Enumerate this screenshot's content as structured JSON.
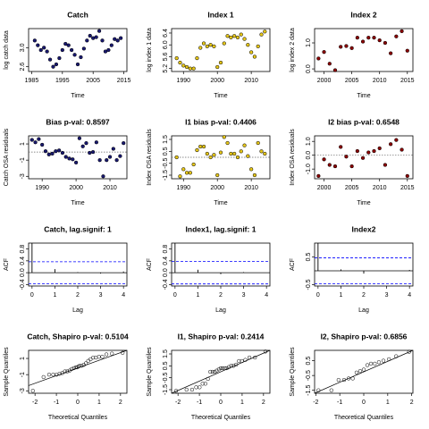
{
  "chart_data": [
    {
      "type": "scatter",
      "title": "Catch",
      "title_color": "#000000",
      "xlabel": "Time",
      "ylabel": "log catch data",
      "color": "#191970",
      "x": [
        1986,
        1987,
        1988,
        1989,
        1990,
        1991,
        1992,
        1993,
        1994,
        1995,
        1996,
        1997,
        1998,
        1999,
        2000,
        2001,
        2002,
        2003,
        2004,
        2005,
        2006,
        2007,
        2008,
        2009,
        2010,
        2011,
        2012,
        2013,
        2014
      ],
      "values": [
        3.15,
        3.05,
        2.95,
        3.0,
        2.92,
        2.75,
        2.6,
        2.65,
        2.78,
        2.95,
        3.08,
        3.05,
        2.95,
        2.85,
        2.65,
        2.8,
        2.98,
        3.15,
        3.25,
        3.2,
        3.22,
        3.35,
        3.15,
        2.92,
        2.95,
        3.05,
        3.18,
        3.15,
        3.2
      ],
      "xlim": [
        1984,
        2016
      ],
      "ylim": [
        2.5,
        3.4
      ],
      "xticks": [
        1985,
        1995,
        2005,
        2015
      ],
      "yticks": [
        2.6,
        {
          "value": 3,
          "label": "3.0"
        }
      ]
    },
    {
      "type": "scatter",
      "title": "Index 1",
      "title_color": "#000000",
      "xlabel": "Time",
      "ylabel": "log index 1 data",
      "color": "#e6c619",
      "x": [
        1988,
        1989,
        1990,
        1991,
        1992,
        1993,
        1994,
        1995,
        1996,
        1997,
        1998,
        1999,
        2000,
        2001,
        2002,
        2003,
        2004,
        2005,
        2006,
        2007,
        2008,
        2009,
        2010,
        2011,
        2012,
        2013,
        2014
      ],
      "values": [
        5.55,
        5.4,
        5.3,
        5.25,
        5.2,
        5.2,
        5.55,
        5.9,
        6.05,
        5.95,
        6.0,
        5.95,
        5.25,
        5.4,
        6.05,
        6.3,
        6.25,
        6.3,
        6.25,
        6.35,
        6.2,
        6.0,
        5.75,
        5.6,
        5.95,
        6.35,
        6.45
      ],
      "xlim": [
        1986.5,
        2015.5
      ],
      "ylim": [
        5.1,
        6.55
      ],
      "xticks": [
        1990,
        2000,
        2010
      ],
      "yticks": [
        5.2,
        5.6,
        {
          "value": 6,
          "label": "6.0"
        },
        6.4
      ]
    },
    {
      "type": "scatter",
      "title": "Index 2",
      "title_color": "#000000",
      "xlabel": "Time",
      "ylabel": "log index 2 data",
      "color": "#8b0000",
      "x": [
        1999,
        2000,
        2001,
        2002,
        2003,
        2004,
        2005,
        2006,
        2007,
        2008,
        2009,
        2010,
        2011,
        2012,
        2013,
        2014,
        2015
      ],
      "values": [
        0.4,
        0.65,
        0.2,
        -0.05,
        0.85,
        0.88,
        0.8,
        1.2,
        1.05,
        1.2,
        1.2,
        1.1,
        1.0,
        0.6,
        1.25,
        1.45,
        0.7
      ],
      "xlim": [
        1998.3,
        2016
      ],
      "ylim": [
        -0.1,
        1.55
      ],
      "xticks": [
        2000,
        2005,
        2010,
        2015
      ],
      "yticks": [
        {
          "value": 0,
          "label": "0.0"
        },
        {
          "value": 1,
          "label": "1.0"
        }
      ]
    },
    {
      "type": "scatter",
      "title": "Bias p-val: 0.8597",
      "title_color": "#228b22",
      "xlabel": "Time",
      "ylabel": "Catch OSA residuals",
      "color": "#191970",
      "ref_line": 0,
      "x": [
        1987,
        1988,
        1989,
        1990,
        1991,
        1992,
        1993,
        1994,
        1995,
        1996,
        1997,
        1998,
        1999,
        2000,
        2001,
        2002,
        2003,
        2004,
        2005,
        2006,
        2007,
        2008,
        2009,
        2010,
        2011,
        2012,
        2013,
        2014
      ],
      "values": [
        1.5,
        1.2,
        1.6,
        0.9,
        0.1,
        -0.3,
        -0.2,
        0.1,
        0.2,
        -0.1,
        -0.6,
        -0.8,
        -0.9,
        -1.3,
        1.7,
        0.7,
        1.1,
        -0.1,
        0.0,
        1.2,
        -1.0,
        -3.0,
        -1.0,
        -0.6,
        0.4,
        -1.0,
        -0.5,
        1.1
      ],
      "xlim": [
        1986,
        2015
      ],
      "ylim": [
        -3.3,
        2.0
      ],
      "xticks": [
        1990,
        2000,
        2010
      ],
      "yticks": [
        -3,
        -1,
        1
      ]
    },
    {
      "type": "scatter",
      "title": "I1 bias p-val: 0.4406",
      "title_color": "#228b22",
      "xlabel": "Time",
      "ylabel": "Index OSA residuals",
      "color": "#e6c619",
      "ref_line": 0,
      "x": [
        1988,
        1989,
        1990,
        1991,
        1992,
        1993,
        1994,
        1995,
        1996,
        1997,
        1998,
        1999,
        2000,
        2001,
        2002,
        2003,
        2004,
        2005,
        2006,
        2007,
        2008,
        2009,
        2010,
        2011,
        2012,
        2013,
        2014
      ],
      "values": [
        0.0,
        -1.6,
        -1.0,
        -1.3,
        -1.3,
        -0.6,
        0.6,
        0.9,
        0.9,
        0.3,
        0.0,
        0.2,
        -1.5,
        0.4,
        1.7,
        1.2,
        0.3,
        0.3,
        0.0,
        0.5,
        1.0,
        0.1,
        -1.0,
        -1.5,
        1.2,
        0.5,
        0.3
      ],
      "xlim": [
        1986.5,
        2015.5
      ],
      "ylim": [
        -1.8,
        1.8
      ],
      "xticks": [
        1990,
        2000,
        2010
      ],
      "yticks": [
        -1.5,
        -0.5,
        0.5,
        1.5
      ]
    },
    {
      "type": "scatter",
      "title": "I2 bias p-val: 0.6548",
      "title_color": "#228b22",
      "xlabel": "Time",
      "ylabel": "Index OSA residuals",
      "color": "#8b0000",
      "ref_line": 0,
      "x": [
        1999,
        2000,
        2001,
        2002,
        2003,
        2004,
        2005,
        2006,
        2007,
        2008,
        2009,
        2010,
        2011,
        2012,
        2013,
        2014,
        2015
      ],
      "values": [
        -1.5,
        -0.3,
        -0.7,
        -0.8,
        0.6,
        -0.1,
        -0.8,
        0.3,
        -0.2,
        0.2,
        0.3,
        0.5,
        -0.7,
        0.8,
        1.1,
        0.4,
        -1.5
      ],
      "xlim": [
        1998.3,
        2016
      ],
      "ylim": [
        -1.7,
        1.4
      ],
      "xticks": [
        2000,
        2005,
        2010,
        2015
      ],
      "yticks": [
        {
          "value": -1,
          "label": "-1.0"
        },
        {
          "value": 0,
          "label": "0.0"
        },
        {
          "value": 1,
          "label": "1.0"
        }
      ]
    },
    {
      "type": "bar",
      "title": "Catch, lag.signif: 1",
      "title_color": "#ff0000",
      "xlabel": "Lag",
      "ylabel": "ACF",
      "color": "#000000",
      "ref_line": 0,
      "bands": [
        -0.37,
        0.37
      ],
      "band_color": "#0000ff",
      "x": [
        0,
        1,
        2,
        3,
        4
      ],
      "values": [
        1.0,
        0.12,
        0.02,
        -0.03,
        0.04
      ],
      "xlim": [
        -0.15,
        4.15
      ],
      "ylim": [
        -0.45,
        1.0
      ],
      "xticks": [
        0,
        1,
        2,
        3,
        4
      ],
      "yticks": [
        -0.4,
        {
          "value": 0,
          "label": "0.0"
        },
        0.4,
        0.8
      ]
    },
    {
      "type": "bar",
      "title": "Index1, lag.signif: 1",
      "title_color": "#ff0000",
      "xlabel": "Lag",
      "ylabel": "ACF",
      "color": "#000000",
      "ref_line": 0,
      "bands": [
        -0.38,
        0.38
      ],
      "band_color": "#0000ff",
      "x": [
        0,
        1,
        2,
        3,
        4
      ],
      "values": [
        1.0,
        0.1,
        -0.05,
        0.02,
        0.0
      ],
      "xlim": [
        -0.15,
        4.15
      ],
      "ylim": [
        -0.45,
        1.0
      ],
      "xticks": [
        0,
        1,
        2,
        3,
        4
      ],
      "yticks": [
        -0.4,
        {
          "value": 0,
          "label": "0.0"
        },
        0.4,
        0.8
      ]
    },
    {
      "type": "bar",
      "title": "Index2",
      "title_color": "#228b22",
      "xlabel": "Lag",
      "ylabel": "ACF",
      "color": "#000000",
      "ref_line": 0,
      "bands": [
        -0.47,
        0.47
      ],
      "band_color": "#0000ff",
      "x": [
        0,
        1,
        2,
        3,
        4
      ],
      "values": [
        1.0,
        0.05,
        -0.1,
        0.0,
        0.03
      ],
      "xlim": [
        -0.15,
        4.15
      ],
      "ylim": [
        -0.55,
        1.0
      ],
      "xticks": [
        0,
        1,
        2,
        3,
        4
      ],
      "yticks": [
        -0.5,
        0.5
      ]
    },
    {
      "type": "scatter",
      "marker": "open",
      "title": "Catch, Shapiro p-val: 0.5104",
      "title_color": "#228b22",
      "xlabel": "Theoretical Quantiles",
      "ylabel": "Sample Quantiles",
      "color": "#000000",
      "qq_line": {
        "intercept": -0.05,
        "slope": 1.0
      },
      "x": [
        -2.1,
        -1.6,
        -1.34,
        -1.15,
        -0.99,
        -0.85,
        -0.72,
        -0.6,
        -0.49,
        -0.38,
        -0.28,
        -0.18,
        -0.09,
        -0.03,
        0.03,
        0.09,
        0.18,
        0.28,
        0.38,
        0.49,
        0.6,
        0.72,
        0.85,
        0.99,
        1.15,
        1.34,
        1.6,
        2.1
      ],
      "values": [
        -3.0,
        -1.3,
        -1.0,
        -1.0,
        -1.0,
        -0.9,
        -0.8,
        -0.6,
        -0.6,
        -0.5,
        -0.3,
        -0.2,
        -0.1,
        -0.1,
        0.0,
        0.1,
        0.1,
        0.2,
        0.4,
        0.7,
        0.9,
        1.1,
        1.1,
        1.2,
        1.2,
        1.5,
        1.6,
        1.7
      ],
      "xlim": [
        -2.3,
        2.3
      ],
      "ylim": [
        -3.3,
        2.0
      ],
      "xticks": [
        -2,
        -1,
        0,
        1,
        2
      ],
      "yticks": [
        -3,
        -1,
        1
      ]
    },
    {
      "type": "scatter",
      "marker": "open",
      "title": "I1, Shapiro p-val: 0.2414",
      "title_color": "#228b22",
      "xlabel": "Theoretical Quantiles",
      "ylabel": "Sample Quantiles",
      "color": "#000000",
      "qq_line": {
        "intercept": 0.1,
        "slope": 1.0
      },
      "x": [
        -2.09,
        -1.6,
        -1.34,
        -1.15,
        -0.99,
        -0.85,
        -0.72,
        -0.6,
        -0.49,
        -0.38,
        -0.28,
        -0.19,
        -0.09,
        0,
        0.09,
        0.19,
        0.28,
        0.38,
        0.49,
        0.6,
        0.72,
        0.85,
        0.99,
        1.15,
        1.34,
        1.6,
        2.09
      ],
      "values": [
        -1.6,
        -1.5,
        -1.5,
        -1.3,
        -1.3,
        -1.0,
        -1.0,
        -0.6,
        0.0,
        0.0,
        0.0,
        0.1,
        0.2,
        0.3,
        0.3,
        0.3,
        0.3,
        0.4,
        0.5,
        0.5,
        0.6,
        0.9,
        0.9,
        1.0,
        1.2,
        1.2,
        1.7
      ],
      "xlim": [
        -2.3,
        2.3
      ],
      "ylim": [
        -1.8,
        1.8
      ],
      "xticks": [
        -2,
        -1,
        0,
        1,
        2
      ],
      "yticks": [
        -1.5,
        -0.5,
        0.5,
        1.5
      ]
    },
    {
      "type": "scatter",
      "marker": "open",
      "title": "I2, Shapiro p-val: 0.6856",
      "title_color": "#228b22",
      "xlabel": "Theoretical Quantiles",
      "ylabel": "Sample Quantiles",
      "color": "#000000",
      "qq_line": {
        "intercept": 0.0,
        "slope": 0.9
      },
      "x": [
        -1.89,
        -1.35,
        -1.05,
        -0.82,
        -0.63,
        -0.46,
        -0.3,
        -0.15,
        0,
        0.15,
        0.3,
        0.46,
        0.63,
        0.82,
        1.05,
        1.35,
        1.89
      ],
      "values": [
        -1.5,
        -1.5,
        -0.8,
        -0.8,
        -0.7,
        -0.7,
        -0.3,
        -0.2,
        -0.1,
        0.2,
        0.3,
        0.3,
        0.4,
        0.5,
        0.6,
        0.8,
        1.1
      ],
      "xlim": [
        -2.05,
        2.05
      ],
      "ylim": [
        -1.7,
        1.2
      ],
      "xticks": [
        -2,
        -1,
        0,
        1,
        2
      ],
      "yticks": [
        -1.5,
        -0.5,
        0.5
      ]
    }
  ]
}
